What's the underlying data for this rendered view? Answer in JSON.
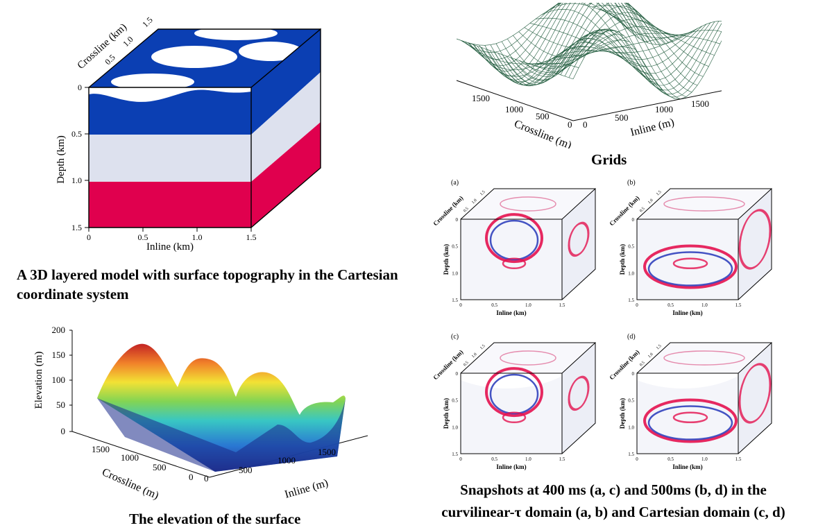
{
  "captions": {
    "model": "A 3D layered model with surface topography in the Cartesian coordinate system",
    "grids": "Grids",
    "elevation": "The elevation of the surface",
    "snapshots_line1": "Snapshots at 400 ms (a, c) and 500ms (b, d) in the",
    "snapshots_line2": "curvilinear-τ  domain (a, b) and Cartesian domain (c, d)"
  },
  "model_panel": {
    "ylabel": "Depth (km)",
    "xlabel": "Inline (km)",
    "zlabel": "Crossline (km)",
    "y_ticks": [
      "0",
      "0.5",
      "1.0",
      "1.5"
    ],
    "x_ticks": [
      "0",
      "0.5",
      "1.0",
      "1.5"
    ],
    "z_ticks": [
      "0.5",
      "1.0",
      "1.5"
    ],
    "layers": [
      {
        "name": "top",
        "color": "#0b3fb3"
      },
      {
        "name": "middle",
        "color": "#dde1ee"
      },
      {
        "name": "bottom",
        "color": "#e0004e"
      }
    ]
  },
  "grids_panel": {
    "xlabel": "Inline (m)",
    "ylabel": "Crossline (m)",
    "x_ticks": [
      "0",
      "500",
      "1000",
      "1500"
    ],
    "y_ticks": [
      "0",
      "500",
      "1000",
      "1500"
    ],
    "mesh_color": "#1f5a3c"
  },
  "elevation_panel": {
    "zlabel": "Elevation (m)",
    "xlabel": "Inline (m)",
    "ylabel": "Crossline (m)",
    "z_ticks": [
      "0",
      "50",
      "100",
      "150",
      "200"
    ],
    "x_ticks": [
      "0",
      "500",
      "1000",
      "1500"
    ],
    "y_ticks": [
      "0",
      "500",
      "1000",
      "1500"
    ]
  },
  "snapshots": [
    {
      "label": "(a)",
      "ylabel": "Depth (km)",
      "xlabel": "Inline (km)",
      "zlabel": "Crossline (km)",
      "y_ticks": [
        "0",
        "0.5",
        "1.0",
        "1.5"
      ],
      "x_ticks": [
        "0",
        "0.5",
        "1.0",
        "1.5"
      ],
      "z_ticks": [
        "0.5",
        "1.0",
        "1.5"
      ]
    },
    {
      "label": "(b)",
      "ylabel": "Depth (km)",
      "xlabel": "Inline (km)",
      "zlabel": "Crossline (km)",
      "y_ticks": [
        "0",
        "0.5",
        "1.0",
        "1.5"
      ],
      "x_ticks": [
        "0",
        "0.5",
        "1.0",
        "1.5"
      ],
      "z_ticks": [
        "0.5",
        "1.0",
        "1.5"
      ]
    },
    {
      "label": "(c)",
      "ylabel": "Depth (km)",
      "xlabel": "Inline (km)",
      "zlabel": "Crossline (km)",
      "y_ticks": [
        "0",
        "0.5",
        "1.0",
        "1.5"
      ],
      "x_ticks": [
        "0",
        "0.5",
        "1.0",
        "1.5"
      ],
      "z_ticks": [
        "0.5",
        "1.0",
        "1.5"
      ]
    },
    {
      "label": "(d)",
      "ylabel": "Depth (km)",
      "xlabel": "Inline (km)",
      "zlabel": "Crossline (km)",
      "y_ticks": [
        "0",
        "0.5",
        "1.0",
        "1.5"
      ],
      "x_ticks": [
        "0",
        "0.5",
        "1.0",
        "1.5"
      ],
      "z_ticks": [
        "0.5",
        "1.0",
        "1.5"
      ]
    }
  ]
}
